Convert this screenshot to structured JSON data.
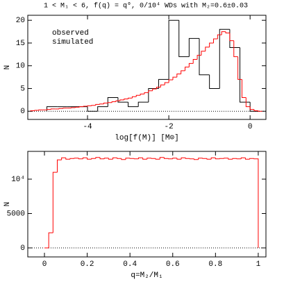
{
  "chart_data": [
    {
      "type": "histogram",
      "title": "1 < M₁ < 6, f(q) = q⁰, 0/10⁴ WDs with M₂=0.6±0.03",
      "x_label": "log[f(M)] [M⊙]",
      "y_label": "N",
      "xlim": [
        -5.47,
        0.39
      ],
      "ylim": [
        -1.8,
        21.1
      ],
      "xticks": [
        -4,
        -2,
        0
      ],
      "yticks": [
        0,
        5,
        10,
        15,
        20
      ],
      "zero_line": true,
      "legend": "upper left",
      "series": [
        {
          "name": "observed",
          "color": "#000000",
          "bins": [
            -5.0,
            -4.75,
            -4.5,
            -4.25,
            -4.0,
            -3.75,
            -3.5,
            -3.25,
            -3.0,
            -2.75,
            -2.5,
            -2.25,
            -2.0,
            -1.75,
            -1.5,
            -1.25,
            -1.0,
            -0.75,
            -0.5,
            -0.25,
            0.0,
            0.25
          ],
          "values": [
            1,
            1,
            1,
            1,
            0,
            1,
            3,
            2,
            1,
            2,
            5,
            7,
            20,
            12,
            16,
            8,
            5,
            18,
            14,
            2,
            0
          ]
        },
        {
          "name": "simulated",
          "color": "#ff0000",
          "bins": [
            -5.4,
            -5.3,
            -5.2,
            -5.1,
            -5.0,
            -4.9,
            -4.8,
            -4.7,
            -4.6,
            -4.5,
            -4.4,
            -4.3,
            -4.2,
            -4.1,
            -4.0,
            -3.9,
            -3.8,
            -3.7,
            -3.6,
            -3.5,
            -3.4,
            -3.3,
            -3.2,
            -3.1,
            -3.0,
            -2.9,
            -2.8,
            -2.7,
            -2.6,
            -2.5,
            -2.4,
            -2.3,
            -2.2,
            -2.1,
            -2.0,
            -1.9,
            -1.8,
            -1.7,
            -1.6,
            -1.5,
            -1.4,
            -1.3,
            -1.2,
            -1.1,
            -1.0,
            -0.9,
            -0.8,
            -0.7,
            -0.6,
            -0.5,
            -0.4,
            -0.3,
            -0.2,
            -0.1,
            0.0,
            0.1,
            0.2,
            0.3
          ],
          "values": [
            0.1,
            0.2,
            0.3,
            0.3,
            0.4,
            0.5,
            0.5,
            0.6,
            0.7,
            0.7,
            0.8,
            0.9,
            1.0,
            1.1,
            1.2,
            1.3,
            1.5,
            1.6,
            1.8,
            1.9,
            2.1,
            2.3,
            2.5,
            2.7,
            2.9,
            3.2,
            3.5,
            3.8,
            4.1,
            4.5,
            4.9,
            5.3,
            5.8,
            6.3,
            6.9,
            7.5,
            8.2,
            8.9,
            9.7,
            10.5,
            11.4,
            12.3,
            13.2,
            14.1,
            15.0,
            15.9,
            16.8,
            17.5,
            17.2,
            15.5,
            12.0,
            7.0,
            3.0,
            1.0,
            0.4,
            0.1,
            0.0
          ]
        }
      ]
    },
    {
      "type": "histogram",
      "x_label": "q=M₂/M₁",
      "y_label": "N",
      "xlim": [
        -0.078,
        1.036
      ],
      "ylim": [
        -1313,
        14040
      ],
      "xticks": [
        0,
        0.2,
        0.4,
        0.6,
        0.8,
        1
      ],
      "yticks": [
        0,
        5000,
        {
          "value": 10000,
          "label": "10⁴"
        }
      ],
      "zero_line": true,
      "series": [
        {
          "color": "#ff0000",
          "bins": [
            0,
            0.02,
            0.04,
            0.06,
            0.08,
            0.1,
            0.12,
            0.14,
            0.16,
            0.18,
            0.2,
            0.22,
            0.24,
            0.26,
            0.28,
            0.3,
            0.32,
            0.34,
            0.36,
            0.38,
            0.4,
            0.42,
            0.44,
            0.46,
            0.48,
            0.5,
            0.52,
            0.54,
            0.56,
            0.58,
            0.6,
            0.62,
            0.64,
            0.66,
            0.68,
            0.7,
            0.72,
            0.74,
            0.76,
            0.78,
            0.8,
            0.82,
            0.84,
            0.86,
            0.88,
            0.9,
            0.92,
            0.94,
            0.96,
            0.98,
            1.0
          ],
          "values": [
            0,
            2200,
            11000,
            12800,
            13100,
            12900,
            13000,
            13050,
            12950,
            13100,
            12900,
            13000,
            13150,
            12950,
            13050,
            12900,
            13100,
            13000,
            12850,
            13050,
            13000,
            12950,
            13100,
            12900,
            13050,
            13000,
            12900,
            13150,
            13000,
            12950,
            13050,
            12900,
            13100,
            13000,
            12950,
            12850,
            13050,
            13000,
            12900,
            13100,
            12950,
            13000,
            13050,
            12900,
            13000,
            12950,
            13100,
            12900,
            13000,
            12950
          ]
        }
      ]
    }
  ]
}
